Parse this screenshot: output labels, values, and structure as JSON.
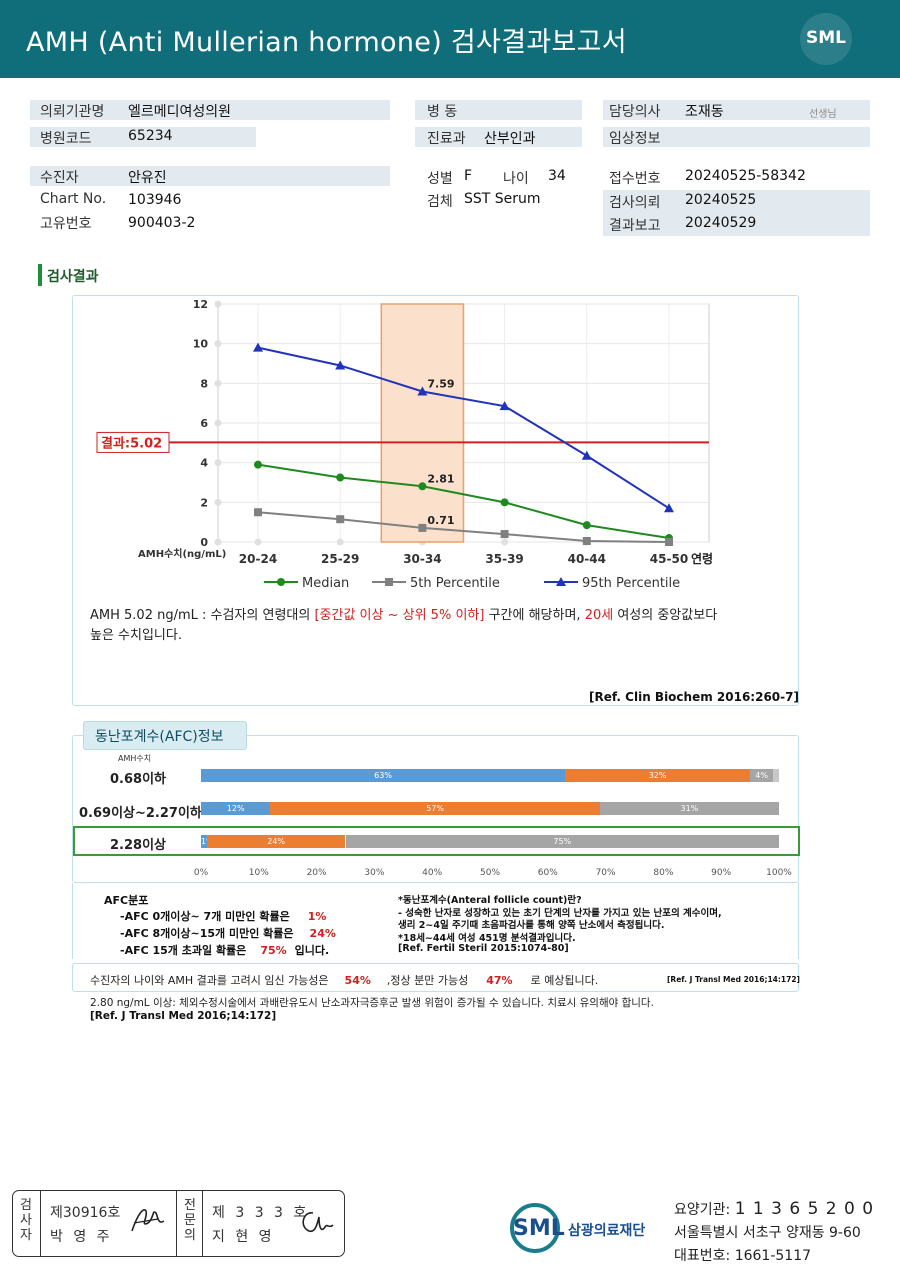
{
  "header": {
    "title": "AMH  (Anti  Mullerian  hormone) 검사결과보고서",
    "logo_text": "SML"
  },
  "info": {
    "institution_label": "의뢰기관명",
    "institution_value": "엘르메디여성의원",
    "hospital_code_label": "병원코드",
    "hospital_code_value": "65234",
    "ward_label": "병  동",
    "ward_value": "",
    "department_label": "진료과",
    "department_value": "산부인과",
    "doctor_label": "담당의사",
    "doctor_value": "조재동",
    "doctor_suffix": "선생님",
    "clinical_label": "임상정보",
    "clinical_value": "",
    "patient_label": "수진자",
    "patient_value": "안유진",
    "chart_label": "Chart No.",
    "chart_value": "103946",
    "unique_label": "고유번호",
    "unique_value": "900403-2",
    "sex_label": "성별",
    "sex_value": "F",
    "age_label": "나이",
    "age_value": "34",
    "specimen_label": "검체",
    "specimen_value": "SST Serum",
    "receipt_label": "접수번호",
    "receipt_value": "20240525-58342",
    "request_label": "검사의뢰",
    "request_value": "20240525",
    "report_label": "결과보고",
    "report_value": "20240529"
  },
  "section_title": "검사결과",
  "chart_data": {
    "type": "line",
    "categories": [
      "20-24",
      "25-29",
      "30-34",
      "35-39",
      "40-44",
      "45-50"
    ],
    "x_axis_suffix": "연령",
    "ylabel": "AMH수치(ng/mL)",
    "ylim": [
      0,
      12
    ],
    "yticks": [
      "0",
      "2",
      "4",
      "6",
      "8",
      "10",
      "12"
    ],
    "series": [
      {
        "name": "Median",
        "values": [
          3.9,
          3.25,
          2.81,
          2.0,
          0.85,
          0.2
        ],
        "color": "#1e8a1e",
        "marker": "circle"
      },
      {
        "name": "5th Percentile",
        "values": [
          1.5,
          1.15,
          0.71,
          0.4,
          0.05,
          0.0
        ],
        "color": "#808080",
        "marker": "square"
      },
      {
        "name": "95th Percentile",
        "values": [
          9.8,
          8.9,
          7.59,
          6.85,
          4.35,
          1.7
        ],
        "color": "#2233bb",
        "marker": "triangle"
      }
    ],
    "annotations": [
      "7.59",
      "2.81",
      "0.71"
    ],
    "result_line": {
      "value": 5.02,
      "label": "결과:5.02",
      "color": "#d21f1f"
    },
    "highlight_category": "30-34",
    "grid": true,
    "legend_position": "bottom"
  },
  "interpretation": {
    "line1_a": "AMH  5.02 ng/mL : 수검자의 연령대의 ",
    "line1_red": "[중간값 이상 ~ 상위 5% 이하]",
    "line1_b": "  구간에 해당하며, ",
    "line1_red2": "20세",
    "line1_c": " 여성의 중앙값보다",
    "line2": "높은 수치입니다.",
    "ref": "[Ref. Clin Biochem 2016:260-7]"
  },
  "afc": {
    "tab_title": "동난포계수(AFC)정보",
    "amh_label": "AMH수치",
    "rows": [
      {
        "label": "0.68이하",
        "segments": [
          {
            "pct": 63,
            "text": "63%",
            "color": "#5b9bd5"
          },
          {
            "pct": 32,
            "text": "32%",
            "color": "#ed7d31"
          },
          {
            "pct": 4,
            "text": "4%",
            "color": "#a5a5a5"
          }
        ]
      },
      {
        "label": "0.69이상~2.27이하",
        "segments": [
          {
            "pct": 12,
            "text": "12%",
            "color": "#5b9bd5"
          },
          {
            "pct": 57,
            "text": "57%",
            "color": "#ed7d31"
          },
          {
            "pct": 31,
            "text": "31%",
            "color": "#a5a5a5"
          }
        ]
      },
      {
        "label": "2.28이상",
        "segments": [
          {
            "pct": 1,
            "text": "1%",
            "color": "#5b9bd5"
          },
          {
            "pct": 24,
            "text": "24%",
            "color": "#ed7d31"
          },
          {
            "pct": 75,
            "text": "75%",
            "color": "#a5a5a5"
          }
        ]
      }
    ],
    "axis_ticks": [
      "0%",
      "10%",
      "20%",
      "30%",
      "40%",
      "50%",
      "60%",
      "70%",
      "80%",
      "90%",
      "100%"
    ],
    "dist_title": "AFC분포",
    "dist_lines": [
      {
        "text": "-AFC  0개이상~ 7개 미만인 확률은",
        "value": "1%"
      },
      {
        "text": "-AFC  8개이상~15개 미만인 확률은",
        "value": "24%"
      },
      {
        "text": "-AFC  15개 초과일 확률은",
        "value": "75%",
        "suffix": "입니다."
      }
    ],
    "def_lines": [
      "*동난포계수(Anteral  follicle  count)란?",
      "- 성숙한 난자로 성장하고 있는 초기 단계의 난자를 가지고 있는 난포의 계수이며,",
      "   생리 2~4일 주기때 초음파검사를 통해 양쪽 난소에서 측정됩니다.",
      "*18세~44세 여성 451명 분석결과입니다.",
      "[Ref. Fertil Steril 2015:1074-80]"
    ]
  },
  "prognosis": {
    "a": "수진자의  나이와 AMH  결과를 고려시 임신 가능성은",
    "v1": "54%",
    "b": ",정상 분만 가능성",
    "v2": "47%",
    "c": "로  예상됩니다.",
    "ref": "[Ref. J Transl Med 2016;14:172]"
  },
  "footnote": {
    "line": "2.80  ng/mL  이상: 체외수정시술에서 과배란유도시 난소과자극증후군 발생 위험이 증가될 수 있습니다. 치료시 유의해야 합니다.",
    "ref": "[Ref. J Transl Med 2016;14:172]"
  },
  "signature": {
    "role1": [
      "검",
      "사",
      "자"
    ],
    "id1": "제30916호",
    "name1": "박  영  주",
    "role2": [
      "전",
      "문",
      "의"
    ],
    "id2": "제 3 3 3 호",
    "name2": "지  현  영"
  },
  "footer": {
    "logo": "SML",
    "org": "삼광의료재단",
    "code_label": "요양기관:",
    "code_value": "1 1 3 6 5 2 0 0",
    "address": "서울특별시 서초구 양재동 9-60",
    "phone_label": "대표번호:",
    "phone_value": "1661-5117"
  }
}
